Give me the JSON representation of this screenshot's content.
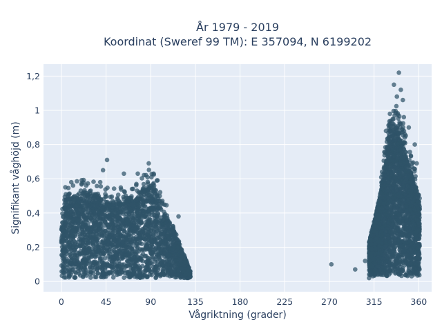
{
  "chart_data": {
    "type": "scatter",
    "title": "År 1979 - 2019",
    "subtitle": "Koordinat (Sweref 99 TM): E 357094, N 6199202",
    "xlabel": "Vågriktning (grader)",
    "ylabel": "Signifikant våghöjd (m)",
    "xlim": [
      -18,
      373
    ],
    "ylim": [
      -0.06,
      1.27
    ],
    "x_ticks": [
      0,
      45,
      90,
      135,
      180,
      225,
      270,
      315,
      360
    ],
    "y_ticks": [
      0,
      0.2,
      0.4,
      0.6,
      0.8,
      1.0,
      1.2
    ],
    "y_tick_labels": [
      "0",
      "0,2",
      "0,4",
      "0,6",
      "0,8",
      "1",
      "1,2"
    ],
    "grid": true,
    "colors": {
      "marker": "#2f5368",
      "plot_bg": "#e5ecf6",
      "grid": "#ffffff",
      "text": "#2a3f5f"
    },
    "clusters": [
      {
        "x_range": [
          0,
          130
        ],
        "y_range": [
          0.02,
          0.6
        ],
        "density": "very high"
      },
      {
        "x_range": [
          308,
          362
        ],
        "y_range": [
          0.01,
          1.22
        ],
        "density": "very high"
      }
    ],
    "notable_points": [
      {
        "x": 46,
        "y": 0.71
      },
      {
        "x": 42,
        "y": 0.65
      },
      {
        "x": 88,
        "y": 0.69
      },
      {
        "x": 93,
        "y": 0.63
      },
      {
        "x": 77,
        "y": 0.63
      },
      {
        "x": 63,
        "y": 0.63
      },
      {
        "x": 272,
        "y": 0.1
      },
      {
        "x": 296,
        "y": 0.07
      },
      {
        "x": 306,
        "y": 0.12
      },
      {
        "x": 310,
        "y": 0.02
      },
      {
        "x": 340,
        "y": 1.22
      },
      {
        "x": 335,
        "y": 1.15
      },
      {
        "x": 342,
        "y": 1.12
      },
      {
        "x": 338,
        "y": 1.08
      },
      {
        "x": 344,
        "y": 1.06
      },
      {
        "x": 331,
        "y": 0.98
      },
      {
        "x": 345,
        "y": 0.96
      },
      {
        "x": 327,
        "y": 0.88
      },
      {
        "x": 350,
        "y": 0.9
      },
      {
        "x": 356,
        "y": 0.8
      },
      {
        "x": 358,
        "y": 0.69
      },
      {
        "x": 25,
        "y": 0.56
      },
      {
        "x": 10,
        "y": 0.58
      },
      {
        "x": 118,
        "y": 0.38
      }
    ]
  }
}
